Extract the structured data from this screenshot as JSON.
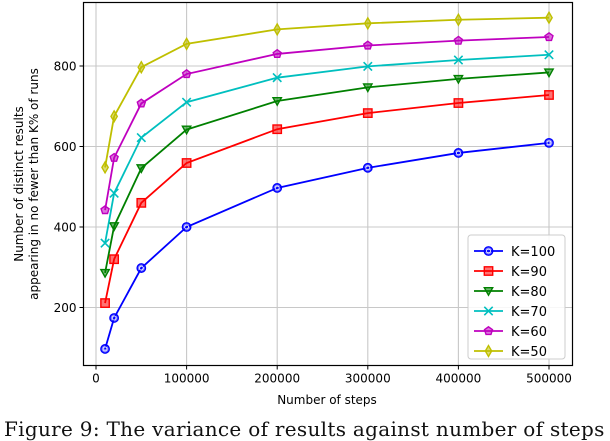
{
  "chart_data": {
    "type": "line",
    "title": "",
    "xlabel": "Number of steps",
    "ylabel_lines": [
      "Number of distinct results",
      "appearing in no fewer than K% of runs"
    ],
    "x": [
      10000,
      20000,
      50000,
      100000,
      200000,
      300000,
      400000,
      500000
    ],
    "xticks": [
      0,
      100000,
      200000,
      300000,
      400000,
      500000
    ],
    "xtick_labels": [
      "0",
      "100000",
      "200000",
      "300000",
      "400000",
      "500000"
    ],
    "yticks": [
      200,
      400,
      600,
      800
    ],
    "ytick_labels": [
      "200",
      "400",
      "600",
      "800"
    ],
    "xlim": [
      -15000,
      525000
    ],
    "ylim": [
      51,
      962
    ],
    "grid": true,
    "legend_position": "lower right",
    "series": [
      {
        "name": "K=100",
        "color": "#0000ff",
        "marker": "circle",
        "values": [
          97,
          174,
          298,
          400,
          497,
          547,
          584,
          609
        ]
      },
      {
        "name": "K=90",
        "color": "#ff0000",
        "marker": "square",
        "values": [
          211,
          320,
          460,
          559,
          643,
          683,
          708,
          728
        ]
      },
      {
        "name": "K=80",
        "color": "#008000",
        "marker": "triangle-down",
        "values": [
          286,
          402,
          546,
          642,
          713,
          747,
          768,
          784
        ]
      },
      {
        "name": "K=70",
        "color": "#00bfbf",
        "marker": "x",
        "values": [
          360,
          484,
          622,
          710,
          771,
          799,
          815,
          828
        ]
      },
      {
        "name": "K=60",
        "color": "#bf00bf",
        "marker": "pentagon",
        "values": [
          442,
          572,
          707,
          780,
          830,
          851,
          863,
          872
        ]
      },
      {
        "name": "K=50",
        "color": "#bfbf00",
        "marker": "diamond",
        "values": [
          548,
          675,
          797,
          855,
          891,
          906,
          915,
          920
        ]
      }
    ]
  },
  "caption": "Figure 9: The variance of results against number of steps"
}
